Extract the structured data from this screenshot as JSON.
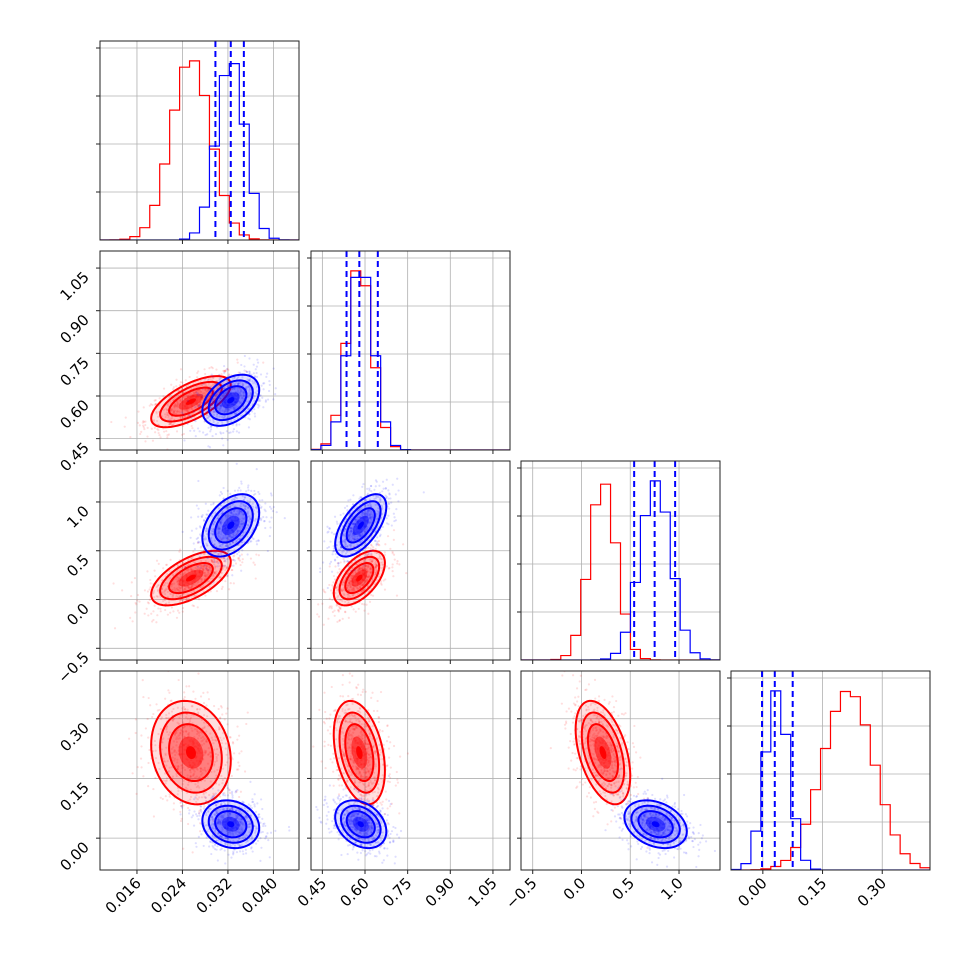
{
  "chart_data": {
    "type": "corner",
    "parameters": 4,
    "grid": true,
    "colors": {
      "series_a": "#ff0000",
      "series_b": "#0000ff"
    },
    "series": [
      {
        "color": "red",
        "median": [
          0.0255,
          0.58,
          0.22,
          0.215
        ],
        "sigma": [
          0.0035,
          0.045,
          0.14,
          0.065
        ],
        "rho": [
          [
            1,
            0.65,
            0.6,
            -0.15
          ],
          [
            0.65,
            1,
            0.55,
            -0.35
          ],
          [
            0.6,
            0.55,
            1,
            -0.45
          ],
          [
            -0.15,
            -0.35,
            -0.45,
            1
          ]
        ]
      },
      {
        "color": "blue",
        "median": [
          0.0325,
          0.585,
          0.76,
          0.035
        ],
        "sigma": [
          0.0025,
          0.045,
          0.16,
          0.03
        ],
        "rho": [
          [
            1,
            0.4,
            0.4,
            -0.15
          ],
          [
            0.4,
            1,
            0.6,
            -0.3
          ],
          [
            0.4,
            0.6,
            1,
            -0.3
          ],
          [
            -0.15,
            -0.3,
            -0.3,
            1
          ]
        ]
      }
    ],
    "quantiles_series": "blue",
    "quantile_lines": [
      [
        0.0298,
        0.0325,
        0.0348
      ],
      [
        0.535,
        0.58,
        0.645
      ],
      [
        0.54,
        0.75,
        0.96
      ],
      [
        -0.002,
        0.03,
        0.075
      ]
    ],
    "axes": [
      {
        "range": [
          0.0095,
          0.0445
        ],
        "ticks": [
          0.016,
          0.024,
          0.032,
          0.04
        ],
        "tick_labels": [
          "0.016",
          "0.024",
          "0.032",
          "0.040"
        ]
      },
      {
        "range": [
          0.41,
          1.11
        ],
        "ticks": [
          0.45,
          0.6,
          0.75,
          0.9,
          1.05
        ],
        "tick_labels": [
          "0.45",
          "0.60",
          "0.75",
          "0.90",
          "1.05"
        ]
      },
      {
        "range": [
          -0.62,
          1.42
        ],
        "ticks": [
          -0.5,
          0.0,
          0.5,
          1.0
        ],
        "tick_labels": [
          "−0.5",
          "0.0",
          "0.5",
          "1.0"
        ]
      },
      {
        "range": [
          -0.08,
          0.42
        ],
        "ticks": [
          0.0,
          0.15,
          0.3
        ],
        "tick_labels": [
          "0.00",
          "0.15",
          "0.30"
        ]
      }
    ]
  }
}
